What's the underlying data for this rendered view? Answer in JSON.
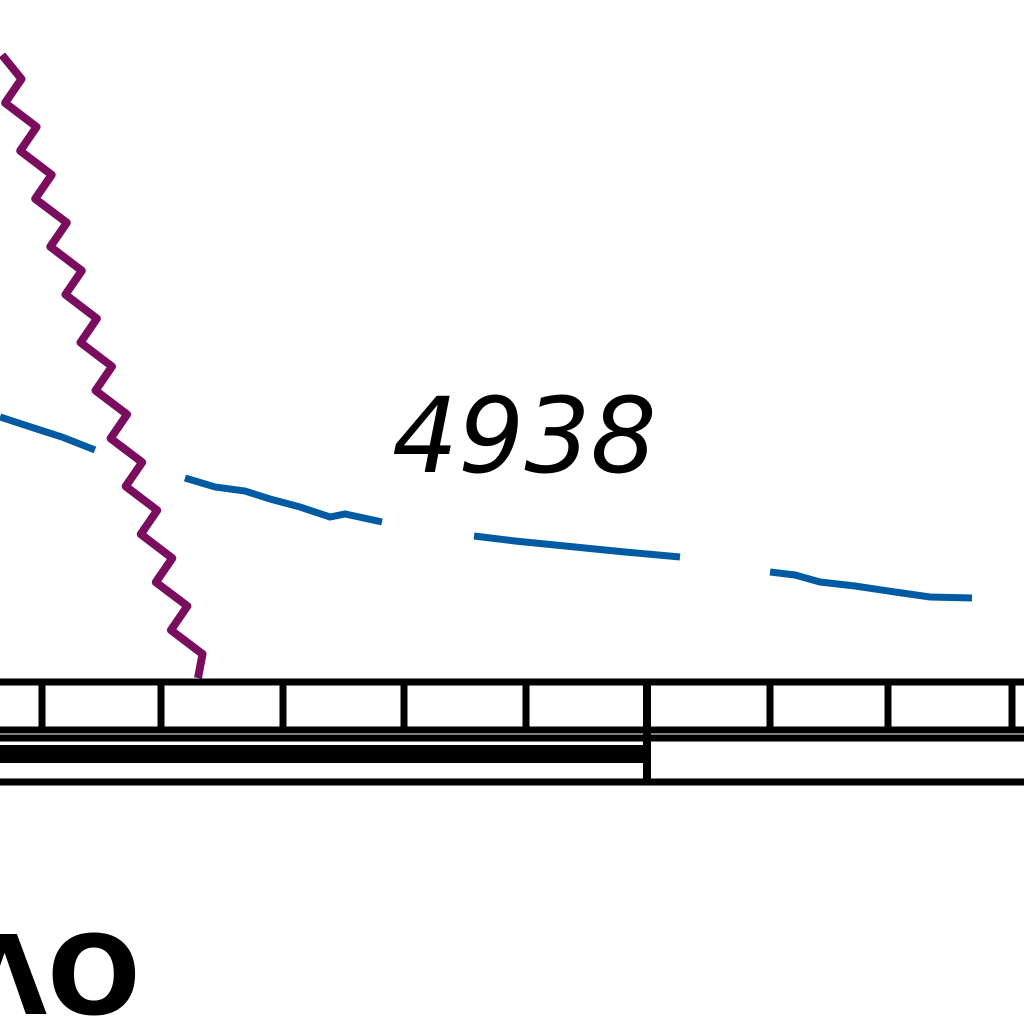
{
  "map": {
    "elevation_label": "4938",
    "symbol_text": "ΛO"
  },
  "colors": {
    "background": "#ffffff",
    "contour_line": "#005ba3",
    "wavy_boundary": "#7a0d5e",
    "ink": "#000000"
  }
}
